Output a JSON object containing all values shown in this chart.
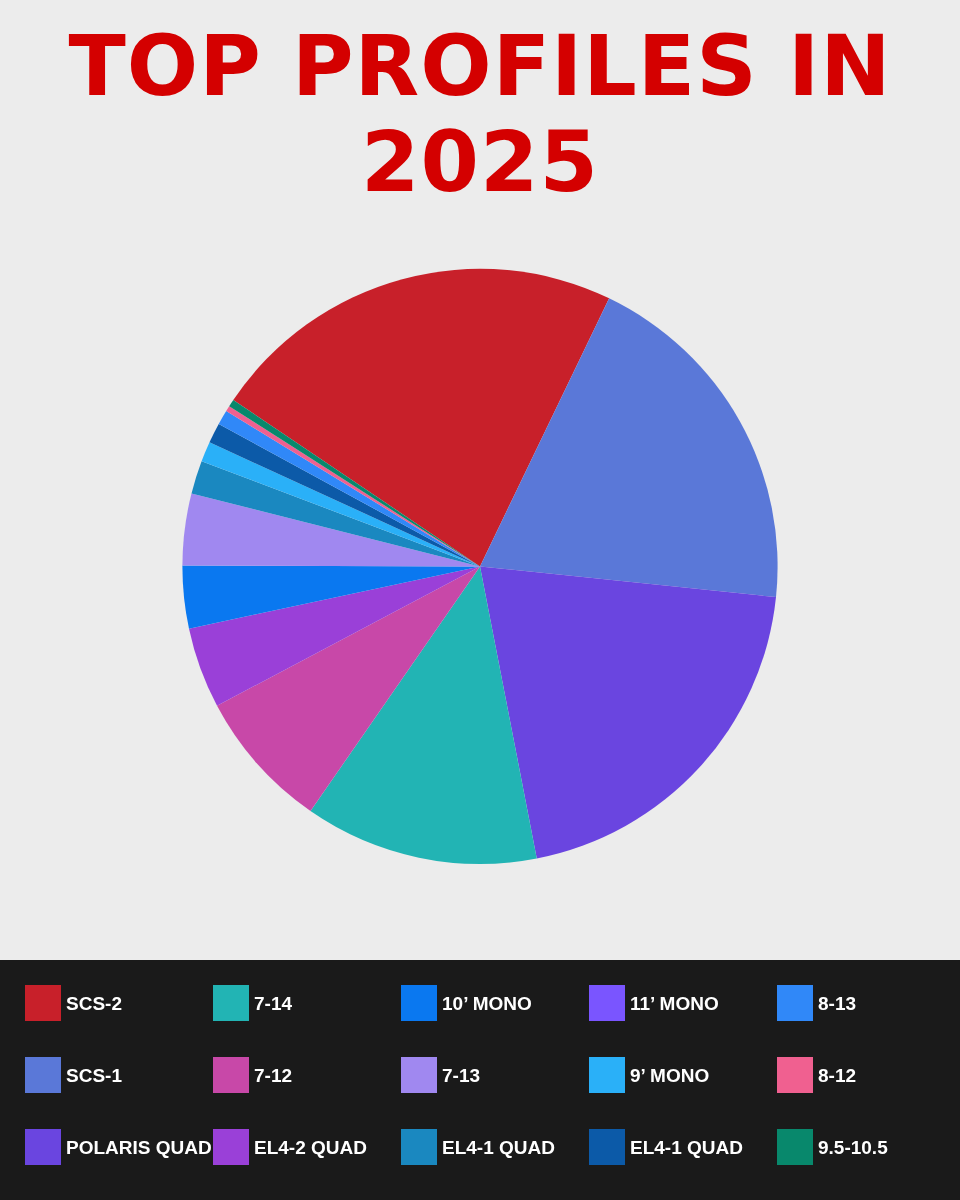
{
  "chart_data": {
    "type": "pie",
    "title": "TOP PROFILES IN 2025",
    "categories": [
      "SCS-2",
      "SCS-1",
      "POLARIS QUAD",
      "7-14",
      "7-12",
      "EL4-2 QUAD",
      "10’ MONO",
      "7-13",
      "EL4-1 QUAD",
      "11’ MONO",
      "9’ MONO",
      "EL4-1 QUAD",
      "8-13",
      "8-12",
      "9.5-10.5"
    ],
    "values": [
      22.7,
      19.5,
      20.3,
      12.7,
      7.6,
      4.4,
      3.4,
      3.9,
      1.8,
      0,
      1.1,
      1.1,
      0.8,
      0.3,
      0.4
    ],
    "colors": [
      "#c8202a",
      "#5a78d8",
      "#6a45e0",
      "#22b4b4",
      "#c848a8",
      "#9a40d8",
      "#0a78f0",
      "#a088f0",
      "#1a88c0",
      "#7a55ff",
      "#2ab0f8",
      "#0c5aa8",
      "#3088f8",
      "#f06090",
      "#08886c"
    ],
    "legend": "bottom"
  }
}
